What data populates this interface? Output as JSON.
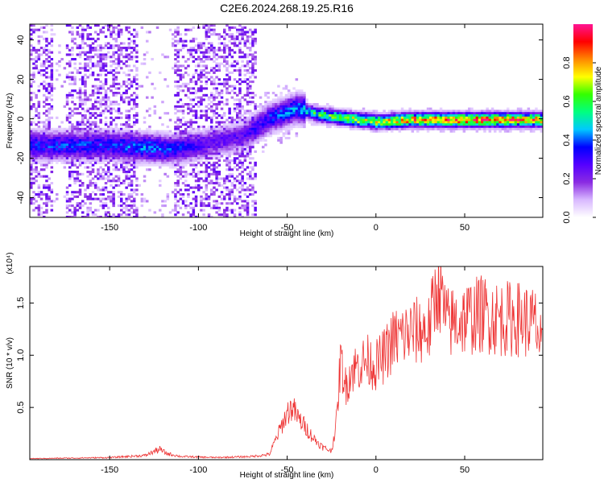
{
  "title": "C2E6.2024.268.19.25.R16",
  "chart_data": [
    {
      "type": "heatmap",
      "panel": "spectrogram",
      "xlabel": "Height of straight line (km)",
      "ylabel": "Frequency (Hz)",
      "xlim": [
        -195,
        94
      ],
      "ylim": [
        -50,
        48
      ],
      "xticks": [
        -150,
        -100,
        -50,
        0,
        50
      ],
      "yticks": [
        -40,
        -20,
        0,
        20,
        40
      ],
      "colorbar": {
        "label": "Normalized spectral amplitude",
        "range": [
          0.0,
          1.0
        ],
        "ticks": [
          "0.0",
          "0.2",
          "0.4",
          "0.6",
          "0.8"
        ],
        "colors": [
          "#ffffff",
          "#d8b8ff",
          "#8a2be2",
          "#5500ff",
          "#0000ff",
          "#00c8ff",
          "#00ff80",
          "#33ff00",
          "#ffff00",
          "#ff8800",
          "#ff0000",
          "#ff1493"
        ]
      },
      "ridge": {
        "description_points": [
          {
            "x": -150,
            "freq": -13,
            "amp": 0.35
          },
          {
            "x": -130,
            "freq": -14,
            "amp": 0.4
          },
          {
            "x": -115,
            "freq": -15,
            "amp": 0.35
          },
          {
            "x": -95,
            "freq": -12,
            "amp": 0.25
          },
          {
            "x": -75,
            "freq": -8,
            "amp": 0.25
          },
          {
            "x": -60,
            "freq": 1,
            "amp": 0.35
          },
          {
            "x": -45,
            "freq": 6,
            "amp": 0.4
          },
          {
            "x": -35,
            "freq": 3,
            "amp": 0.55
          },
          {
            "x": -20,
            "freq": 1,
            "amp": 0.65
          },
          {
            "x": 0,
            "freq": -1,
            "amp": 0.7
          },
          {
            "x": 20,
            "freq": 0,
            "amp": 0.8
          },
          {
            "x": 50,
            "freq": 0,
            "amp": 0.85
          },
          {
            "x": 70,
            "freq": 0,
            "amp": 0.85
          },
          {
            "x": 94,
            "freq": 0,
            "amp": 0.75
          }
        ]
      }
    },
    {
      "type": "line",
      "panel": "snr",
      "xlabel": "Height of straight line (km)",
      "ylabel": "SNR (10 * v/v)",
      "y_multiplier": "(x10⁴)",
      "xlim": [
        -195,
        94
      ],
      "ylim": [
        0,
        1.85
      ],
      "xticks": [
        -150,
        -100,
        -50,
        0,
        50
      ],
      "yticks": [
        0.5,
        1.0,
        1.5
      ],
      "ytick_labels": [
        "0.5",
        "1.0",
        "1.5"
      ],
      "color": "#ee3333",
      "series": [
        {
          "x": [
            -195,
            -150,
            -130,
            -122,
            -118,
            -110,
            -90,
            -70,
            -60,
            -55,
            -50,
            -47,
            -44,
            -40,
            -35,
            -30,
            -25,
            -22,
            -20,
            -17,
            -14,
            -10,
            -5,
            0,
            5,
            10,
            20,
            30,
            35,
            40,
            50,
            60,
            70,
            80,
            90,
            94
          ],
          "y": [
            0.01,
            0.02,
            0.04,
            0.1,
            0.06,
            0.03,
            0.02,
            0.03,
            0.05,
            0.25,
            0.45,
            0.5,
            0.4,
            0.32,
            0.2,
            0.12,
            0.08,
            0.4,
            0.95,
            0.7,
            0.85,
            0.9,
            0.95,
            0.9,
            1.0,
            1.15,
            1.22,
            1.25,
            1.7,
            1.3,
            1.35,
            1.4,
            1.35,
            1.35,
            1.3,
            1.0
          ]
        }
      ]
    }
  ]
}
